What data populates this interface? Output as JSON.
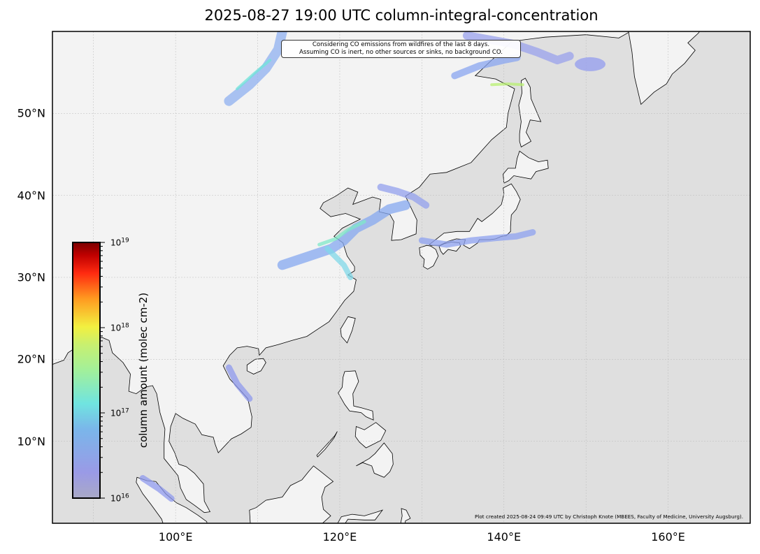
{
  "title": "2025-08-27 19:00 UTC column-integral-concentration",
  "annotation": {
    "line1": "Considering CO emissions from wildfires of the last 8 days.",
    "line2": "Assuming CO is inert, no other sources or sinks, no background CO."
  },
  "credit": "Plot created 2025-08-24 09:49 UTC by Christoph Knote (MBEES, Faculty of Medicine, University Augsburg).",
  "map": {
    "projection": "plate-carree",
    "extent_lon": [
      85,
      170
    ],
    "extent_lat": [
      0,
      60
    ],
    "lat_labels": [
      {
        "lat": 50,
        "label": "50°N"
      },
      {
        "lat": 40,
        "label": "40°N"
      },
      {
        "lat": 30,
        "label": "30°N"
      },
      {
        "lat": 20,
        "label": "20°N"
      },
      {
        "lat": 10,
        "label": "10°N"
      }
    ],
    "lon_labels": [
      {
        "lon": 100,
        "label": "100°E"
      },
      {
        "lon": 120,
        "label": "120°E"
      },
      {
        "lon": 140,
        "label": "140°E"
      },
      {
        "lon": 160,
        "label": "160°E"
      }
    ],
    "colors": {
      "land": "#f3f3f3",
      "ocean": "#dfdfdf",
      "coast": "#000000",
      "plume": "#8c9cf0"
    }
  },
  "colorbar": {
    "label": "column amount (molec cm-2)",
    "scale": "log",
    "range": [
      1e+16,
      1e+19
    ],
    "ticks": [
      {
        "base": "10",
        "exp": "19",
        "value": 1e+19
      },
      {
        "base": "10",
        "exp": "18",
        "value": 1e+18
      },
      {
        "base": "10",
        "exp": "17",
        "value": 1e+17
      },
      {
        "base": "10",
        "exp": "16",
        "value": 1e+16
      }
    ]
  }
}
